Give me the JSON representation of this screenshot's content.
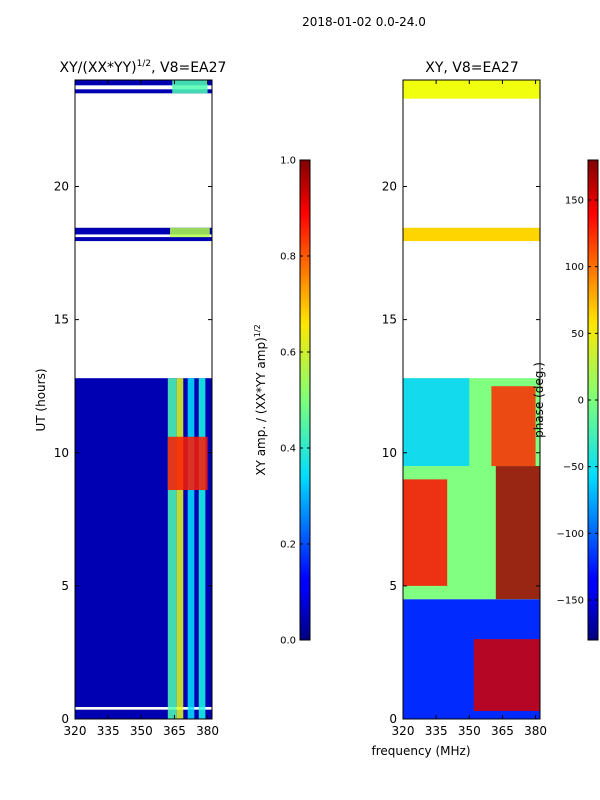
{
  "suptitle": "2018-01-02 0.0-24.0",
  "xlabel_common": "frequency (MHz)",
  "chart_data": [
    {
      "type": "heatmap",
      "title": "XY/(XX*YY)",
      "title_sup": "1/2",
      "title_suffix": ", V8=EA27",
      "xlabel": "frequency (MHz)",
      "ylabel": "UT (hours)",
      "xlim": [
        320,
        382
      ],
      "ylim": [
        0,
        24
      ],
      "xticks": [
        320,
        335,
        350,
        365,
        380
      ],
      "yticks": [
        0,
        5,
        10,
        15,
        20
      ],
      "colorbar": {
        "label": "XY amp. / (XX*YY amp)",
        "label_sup": "1/2",
        "range": [
          0.0,
          1.0
        ],
        "ticks": [
          "0.0",
          "0.2",
          "0.4",
          "0.6",
          "0.8",
          "1.0"
        ]
      },
      "data_rows": [
        {
          "t0": 0.0,
          "t1": 0.35,
          "level": 0.05
        },
        {
          "t0": 0.45,
          "t1": 12.8,
          "level": 0.05
        },
        {
          "t0": 17.95,
          "t1": 18.1,
          "level": 0.05
        },
        {
          "t0": 18.2,
          "t1": 18.45,
          "level": 0.05
        },
        {
          "t0": 23.5,
          "t1": 23.65,
          "level": 0.05
        },
        {
          "t0": 23.8,
          "t1": 24.0,
          "level": 0.05
        }
      ],
      "features": [
        {
          "f0": 362,
          "f1": 366,
          "t0": 0.0,
          "t1": 12.8,
          "level": 0.45
        },
        {
          "f0": 366,
          "f1": 369,
          "t0": 0.0,
          "t1": 12.8,
          "level": 0.6
        },
        {
          "f0": 371,
          "f1": 374,
          "t0": 0.0,
          "t1": 12.8,
          "level": 0.35
        },
        {
          "f0": 376,
          "f1": 379,
          "t0": 0.0,
          "t1": 12.8,
          "level": 0.4
        },
        {
          "f0": 362,
          "f1": 380,
          "t0": 8.6,
          "t1": 10.6,
          "level": 0.85
        },
        {
          "f0": 363,
          "f1": 381,
          "t0": 18.1,
          "t1": 18.45,
          "level": 0.55
        },
        {
          "f0": 364,
          "f1": 380,
          "t0": 23.5,
          "t1": 24.0,
          "level": 0.45
        }
      ]
    },
    {
      "type": "heatmap",
      "title": "XY, V8=EA27",
      "xlabel": "frequency (MHz)",
      "ylabel": "",
      "xlim": [
        320,
        382
      ],
      "ylim": [
        0,
        24
      ],
      "xticks": [
        320,
        335,
        350,
        365,
        380
      ],
      "yticks": [
        0,
        5,
        10,
        15,
        20
      ],
      "colorbar": {
        "label": "phase (deg.)",
        "range": [
          -180,
          180
        ],
        "ticks": [
          "−150",
          "−100",
          "−50",
          "0",
          "50",
          "100",
          "150"
        ]
      },
      "data_rows": [
        {
          "t0": 0.0,
          "t1": 4.5,
          "level": -120
        },
        {
          "t0": 4.5,
          "t1": 12.8,
          "level": 0
        },
        {
          "t0": 17.95,
          "t1": 18.45,
          "level": 60
        },
        {
          "t0": 23.3,
          "t1": 24.0,
          "level": 40
        }
      ],
      "features": [
        {
          "f0": 352,
          "f1": 382,
          "t0": 0.3,
          "t1": 3.0,
          "level": 150
        },
        {
          "f0": 362,
          "f1": 382,
          "t0": 4.5,
          "t1": 9.5,
          "level": 170
        },
        {
          "f0": 320,
          "f1": 340,
          "t0": 5.0,
          "t1": 9.0,
          "level": 130
        },
        {
          "f0": 360,
          "f1": 380,
          "t0": 9.5,
          "t1": 12.5,
          "level": 120
        },
        {
          "f0": 320,
          "f1": 350,
          "t0": 9.5,
          "t1": 12.8,
          "level": -60
        }
      ]
    }
  ]
}
